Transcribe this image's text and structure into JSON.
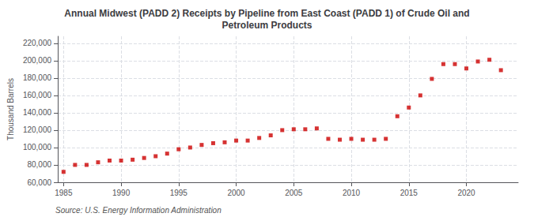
{
  "chart_data": {
    "type": "scatter",
    "title": "Annual Midwest (PADD 2) Receipts by Pipeline from East Coast (PADD 1) of Crude Oil and\nPetroleum Products",
    "ylabel": "Thousand Barrels",
    "annotations": [
      "Source: U.S. Energy Information Administration"
    ],
    "x": [
      1985,
      1986,
      1987,
      1988,
      1989,
      1990,
      1991,
      1992,
      1993,
      1994,
      1995,
      1996,
      1997,
      1998,
      1999,
      2000,
      2001,
      2002,
      2003,
      2004,
      2005,
      2006,
      2007,
      2008,
      2009,
      2010,
      2011,
      2012,
      2013,
      2014,
      2015,
      2016,
      2017,
      2018,
      2019,
      2020,
      2021,
      2022,
      2023
    ],
    "values": [
      72000,
      80000,
      80000,
      83000,
      85000,
      85000,
      86000,
      88000,
      90000,
      93000,
      98000,
      100000,
      103000,
      105000,
      106000,
      108000,
      108000,
      111000,
      114000,
      120000,
      121000,
      121000,
      122000,
      110000,
      109000,
      110000,
      109000,
      109000,
      110000,
      136000,
      146000,
      160000,
      179000,
      196000,
      196000,
      191000,
      199000,
      201000,
      189000
    ],
    "color": "#cc0000",
    "marker": "square",
    "xlim": [
      1984.5,
      2024.5
    ],
    "xticks": [
      1985,
      1990,
      1995,
      2000,
      2005,
      2010,
      2015,
      2020
    ],
    "ylim": [
      60000,
      228000
    ],
    "yticks": [
      {
        "value": 60000,
        "label": "60,000"
      },
      {
        "value": 80000,
        "label": "80,000"
      },
      {
        "value": 100000,
        "label": "100,000"
      },
      {
        "value": 120000,
        "label": "120,000"
      },
      {
        "value": 140000,
        "label": "140,000"
      },
      {
        "value": 160000,
        "label": "160,000"
      },
      {
        "value": 180000,
        "label": "180,000"
      },
      {
        "value": 200000,
        "label": "200,000"
      },
      {
        "value": 220000,
        "label": "220,000"
      }
    ],
    "grid": true
  }
}
